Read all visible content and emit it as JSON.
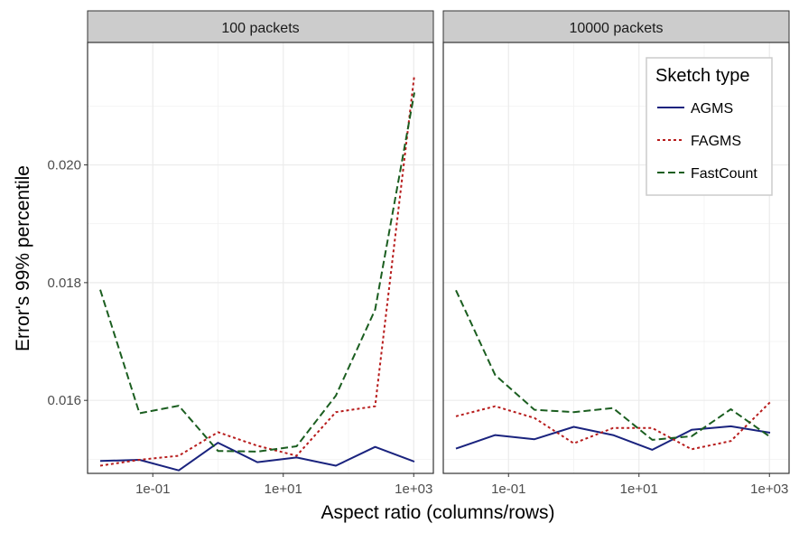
{
  "chart_data": {
    "type": "line",
    "facets": [
      "100 packets",
      "10000 packets"
    ],
    "xlabel": "Aspect ratio (columns/rows)",
    "ylabel": "Error's 99% percentile",
    "x_scale": "log10",
    "xlim": [
      0.01,
      2000
    ],
    "x_ticks": [
      0.1,
      10,
      1000
    ],
    "x_tick_labels": [
      "1e-01",
      "1e+01",
      "1e+03"
    ],
    "ylim": [
      0.01476,
      0.02208
    ],
    "y_ticks": [
      0.016,
      0.018,
      0.02
    ],
    "y_tick_labels": [
      "0.016",
      "0.018",
      "0.020"
    ],
    "grid": true,
    "legend": {
      "title": "Sketch type",
      "placement": "top-right",
      "entries": [
        "AGMS",
        "FAGMS",
        "FastCount"
      ]
    },
    "x": [
      0.015625,
      0.0625,
      0.25,
      1,
      4,
      16,
      64,
      256,
      1024
    ],
    "series": [
      {
        "name": "AGMS",
        "color": "#1a237e",
        "dash": "solid",
        "facet_values": [
          [
            0.01497,
            0.01499,
            0.01481,
            0.01528,
            0.01495,
            0.01503,
            0.01489,
            0.01521,
            0.01496
          ],
          [
            0.01518,
            0.01541,
            0.01534,
            0.01555,
            0.01541,
            0.01516,
            0.0155,
            0.01556,
            0.01545
          ]
        ]
      },
      {
        "name": "FAGMS",
        "color": "#b71c1c",
        "dash": "dotted",
        "facet_values": [
          [
            0.01489,
            0.01499,
            0.01506,
            0.01546,
            0.01523,
            0.01506,
            0.0158,
            0.0159,
            0.02153
          ],
          [
            0.01573,
            0.0159,
            0.0157,
            0.01527,
            0.01553,
            0.01553,
            0.01517,
            0.01531,
            0.01597
          ]
        ]
      },
      {
        "name": "FastCount",
        "color": "#1b5e20",
        "dash": "dashed",
        "facet_values": [
          [
            0.01788,
            0.01578,
            0.01591,
            0.01514,
            0.01513,
            0.01522,
            0.01608,
            0.01754,
            0.02123
          ],
          [
            0.01787,
            0.01643,
            0.01584,
            0.0158,
            0.01587,
            0.01533,
            0.01539,
            0.01585,
            0.01538
          ]
        ]
      }
    ]
  }
}
